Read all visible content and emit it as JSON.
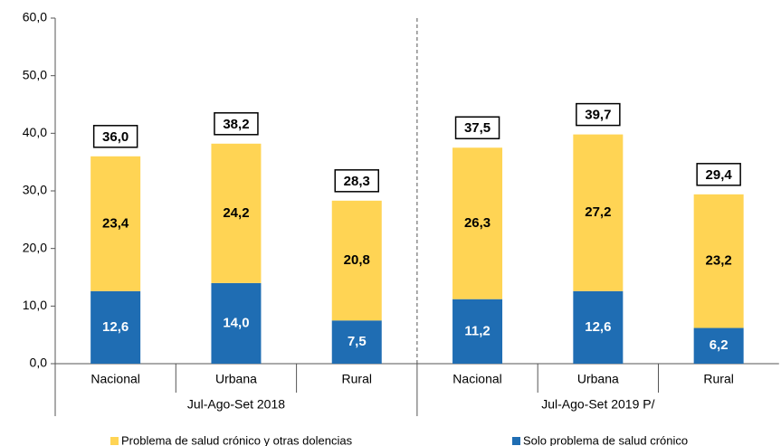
{
  "chart_data": {
    "type": "stacked_bar",
    "categories": [
      "Nacional",
      "Urbana",
      "Rural",
      "Nacional",
      "Urbana",
      "Rural"
    ],
    "groups": [
      {
        "label": "Jul-Ago-Set 2018",
        "size": 3
      },
      {
        "label": "Jul-Ago-Set 2019 P/",
        "size": 3
      }
    ],
    "series": [
      {
        "name": "Solo problema de salud crónico",
        "color": "#1f6db3",
        "label_color": "#ffffff",
        "values": [
          12.6,
          14.0,
          7.5,
          11.2,
          12.6,
          6.2
        ],
        "value_labels": [
          "12,6",
          "14,0",
          "7,5",
          "11,2",
          "12,6",
          "6,2"
        ]
      },
      {
        "name": "Problema de salud crónico y otras dolencias",
        "color": "#ffd454",
        "label_color": "#000000",
        "values": [
          23.4,
          24.2,
          20.8,
          26.3,
          27.2,
          23.2
        ],
        "value_labels": [
          "23,4",
          "24,2",
          "20,8",
          "26,3",
          "27,2",
          "23,2"
        ]
      }
    ],
    "totals": [
      36.0,
      38.2,
      28.3,
      37.5,
      39.7,
      29.4
    ],
    "total_labels": [
      "36,0",
      "38,2",
      "28,3",
      "37,5",
      "39,7",
      "29,4"
    ],
    "ylim": [
      0,
      60
    ],
    "yticks": [
      {
        "value": 0,
        "label": "0,0"
      },
      {
        "value": 10,
        "label": "10,0"
      },
      {
        "value": 20,
        "label": "20,0"
      },
      {
        "value": 30,
        "label": "30,0"
      },
      {
        "value": 40,
        "label": "40,0"
      },
      {
        "value": 50,
        "label": "50,0"
      },
      {
        "value": 60,
        "label": "60,0"
      }
    ],
    "legend_order": [
      1,
      0
    ]
  }
}
